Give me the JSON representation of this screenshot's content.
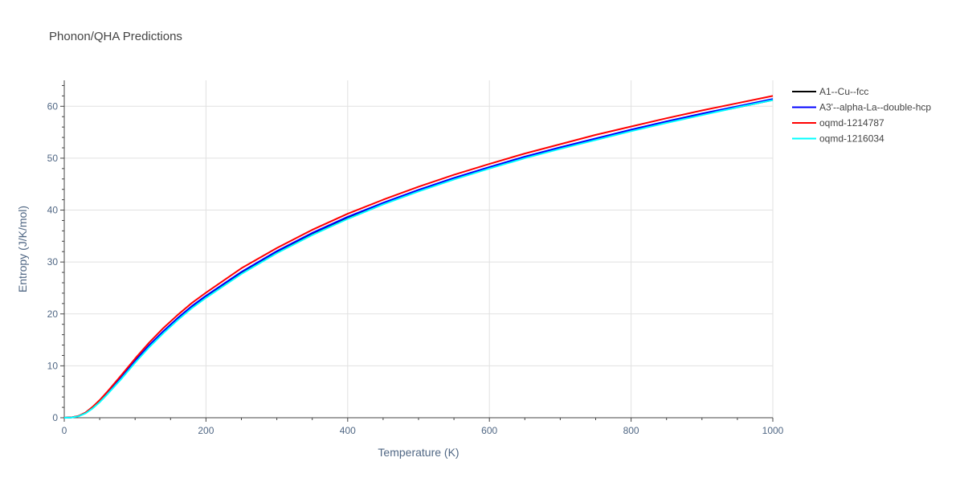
{
  "chart_data": {
    "type": "line",
    "title": "Phonon/QHA Predictions",
    "xlabel": "Temperature (K)",
    "ylabel": "Entropy (J/K/mol)",
    "xlim": [
      0,
      1000
    ],
    "ylim": [
      0,
      65
    ],
    "xticks": [
      0,
      200,
      400,
      600,
      800,
      1000
    ],
    "yticks": [
      0,
      10,
      20,
      30,
      40,
      50,
      60
    ],
    "grid": true,
    "legend_position": "top-right",
    "x": [
      0,
      10,
      20,
      30,
      40,
      50,
      60,
      80,
      100,
      120,
      140,
      160,
      180,
      200,
      250,
      300,
      350,
      400,
      450,
      500,
      550,
      600,
      650,
      700,
      750,
      800,
      850,
      900,
      950,
      1000
    ],
    "series": [
      {
        "name": "A1--Cu--fcc",
        "color": "#000000",
        "values": [
          0,
          0.05,
          0.3,
          0.9,
          1.9,
          3.1,
          4.5,
          7.6,
          10.9,
          13.9,
          16.6,
          19.1,
          21.4,
          23.4,
          28.0,
          32.0,
          35.5,
          38.6,
          41.3,
          43.8,
          46.0,
          48.2,
          50.1,
          52.0,
          53.7,
          55.3,
          56.9,
          58.4,
          59.8,
          61.2
        ]
      },
      {
        "name": "A3'--alpha-La--double-hcp",
        "color": "#0000ff",
        "values": [
          0,
          0.06,
          0.32,
          0.95,
          2.0,
          3.2,
          4.6,
          7.7,
          11.0,
          14.0,
          16.7,
          19.2,
          21.5,
          23.5,
          28.1,
          32.1,
          35.6,
          38.7,
          41.4,
          43.9,
          46.2,
          48.3,
          50.3,
          52.1,
          53.8,
          55.5,
          57.1,
          58.6,
          60.0,
          61.4
        ]
      },
      {
        "name": "oqmd-1214787",
        "color": "#ff0000",
        "values": [
          0,
          0.07,
          0.35,
          1.0,
          2.1,
          3.4,
          4.9,
          8.1,
          11.4,
          14.5,
          17.3,
          19.8,
          22.1,
          24.1,
          28.8,
          32.7,
          36.2,
          39.3,
          42.0,
          44.5,
          46.8,
          48.9,
          50.9,
          52.7,
          54.5,
          56.1,
          57.7,
          59.2,
          60.6,
          62.0
        ]
      },
      {
        "name": "oqmd-1216034",
        "color": "#00ffff",
        "values": [
          0,
          0.04,
          0.28,
          0.85,
          1.8,
          3.0,
          4.4,
          7.4,
          10.6,
          13.6,
          16.3,
          18.8,
          21.1,
          23.1,
          27.7,
          31.7,
          35.2,
          38.3,
          41.1,
          43.6,
          45.9,
          48.0,
          50.0,
          51.8,
          53.5,
          55.2,
          56.8,
          58.3,
          59.8,
          61.2
        ]
      }
    ]
  }
}
